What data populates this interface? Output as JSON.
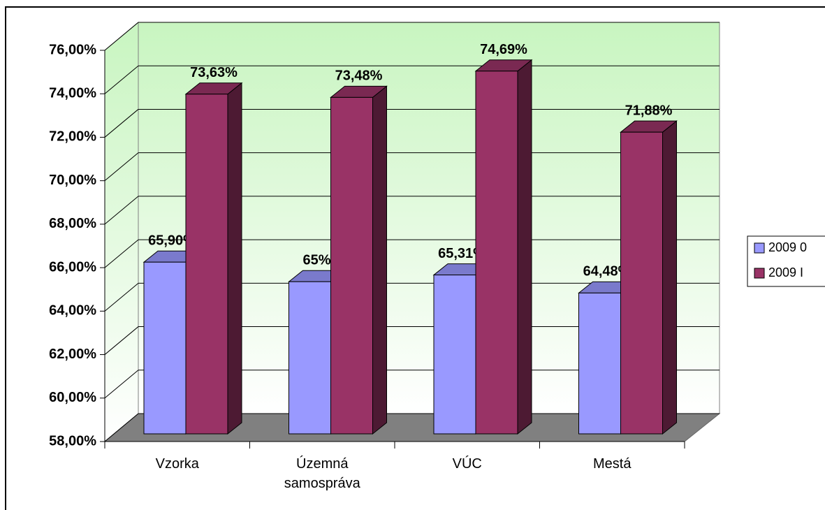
{
  "chart_data": {
    "type": "bar3d",
    "categories": [
      "Vzorka",
      "Územná samospráva",
      "VÚC",
      "Mestá"
    ],
    "series": [
      {
        "name": "2009 0",
        "color": "#9999ff",
        "values": [
          65.9,
          65,
          65.31,
          64.48
        ],
        "value_labels": [
          "65,90%",
          "65%",
          "65,31%",
          "64,48%"
        ]
      },
      {
        "name": "2009 I",
        "color": "#993366",
        "values": [
          73.63,
          73.48,
          74.69,
          71.88
        ],
        "value_labels": [
          "73,63%",
          "73,48%",
          "74,69%",
          "71,88%"
        ]
      }
    ],
    "ylim": [
      58,
      76
    ],
    "yticks": [
      {
        "value": 58,
        "label": "58,00%"
      },
      {
        "value": 60,
        "label": "60,00%"
      },
      {
        "value": 62,
        "label": "62,00%"
      },
      {
        "value": 64,
        "label": "64,00%"
      },
      {
        "value": 66,
        "label": "66,00%"
      },
      {
        "value": 68,
        "label": "68,00%"
      },
      {
        "value": 70,
        "label": "70,00%"
      },
      {
        "value": 72,
        "label": "72,00%"
      },
      {
        "value": 74,
        "label": "74,00%"
      },
      {
        "value": 76,
        "label": "76,00%"
      }
    ],
    "grid": true,
    "legend": "right"
  }
}
